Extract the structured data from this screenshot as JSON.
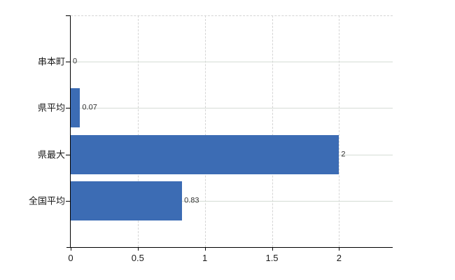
{
  "chart_data": {
    "type": "bar",
    "orientation": "horizontal",
    "title": "",
    "xlabel": "",
    "ylabel": "",
    "categories": [
      "串本町",
      "県平均",
      "県最大",
      "全国平均"
    ],
    "values": [
      0,
      0.07,
      2,
      0.83
    ],
    "data_labels": [
      "0",
      "0.07",
      "2",
      "0.83"
    ],
    "x_tick_labels": [
      "0",
      "0.5",
      "1",
      "1.5",
      "2"
    ],
    "x_tick_values": [
      0,
      0.5,
      1,
      1.5,
      2
    ],
    "xlim": [
      0,
      2.4
    ],
    "grid": true,
    "legend": false,
    "bar_color": "#3c6cb4",
    "gridline_color": "#d5d5d5",
    "axis_color": "#000000",
    "label_color": "#1a1a1a",
    "data_label_color": "#333333",
    "background_color": "#ffffff"
  }
}
